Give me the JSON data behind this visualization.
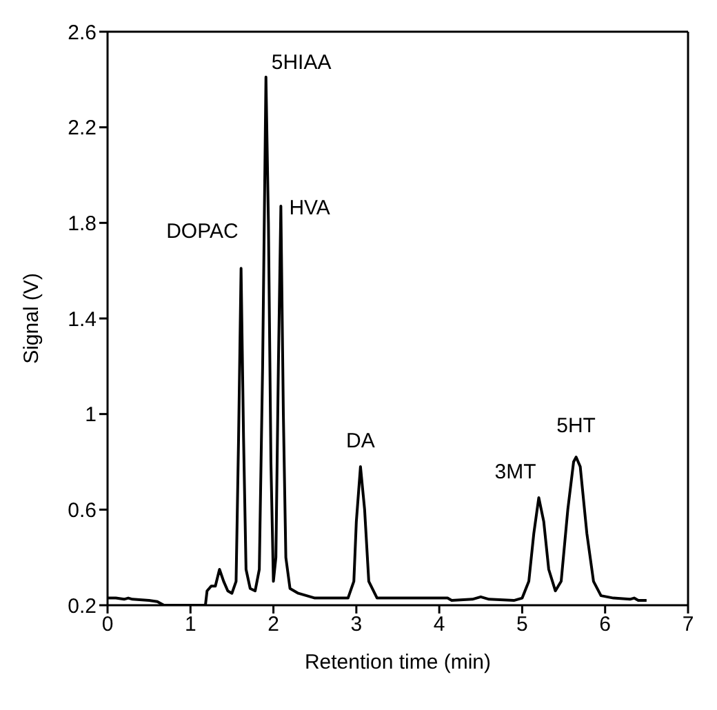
{
  "chart_data": {
    "type": "line",
    "xlabel": "Retention time (min)",
    "ylabel": "Signal (V)",
    "xlim": [
      0,
      7
    ],
    "xticks": [
      0,
      1,
      2,
      3,
      4,
      5,
      6,
      7
    ],
    "ylim": [
      0.2,
      2.6
    ],
    "yticks": [
      0.2,
      0.6,
      1,
      1.4,
      1.8,
      2.2,
      2.6
    ],
    "marker": "none",
    "line_style": "solid",
    "series": [
      {
        "color": "#000000",
        "x": [
          0,
          0.1,
          0.2,
          0.25,
          0.3,
          0.5,
          0.6,
          0.68,
          1.18,
          1.2,
          1.25,
          1.3,
          1.35,
          1.4,
          1.45,
          1.5,
          1.55,
          1.58,
          1.61,
          1.64,
          1.67,
          1.72,
          1.78,
          1.83,
          1.87,
          1.91,
          1.94,
          1.97,
          2.0,
          2.03,
          2.06,
          2.09,
          2.12,
          2.15,
          2.2,
          2.3,
          2.4,
          2.5,
          2.9,
          2.97,
          3.0,
          3.05,
          3.1,
          3.15,
          3.25,
          4.1,
          4.15,
          4.4,
          4.5,
          4.6,
          4.9,
          5.0,
          5.08,
          5.14,
          5.2,
          5.26,
          5.32,
          5.4,
          5.47,
          5.55,
          5.62,
          5.65,
          5.7,
          5.78,
          5.86,
          5.95,
          6.1,
          6.3,
          6.35,
          6.4,
          6.5
        ],
        "values": [
          0.23,
          0.23,
          0.225,
          0.23,
          0.225,
          0.22,
          0.215,
          0.2,
          0.2,
          0.26,
          0.28,
          0.28,
          0.35,
          0.3,
          0.26,
          0.25,
          0.3,
          0.9,
          1.61,
          0.9,
          0.35,
          0.27,
          0.26,
          0.35,
          1.2,
          2.41,
          1.8,
          0.8,
          0.3,
          0.4,
          1.2,
          1.87,
          1.0,
          0.4,
          0.27,
          0.25,
          0.24,
          0.23,
          0.23,
          0.3,
          0.55,
          0.78,
          0.6,
          0.3,
          0.23,
          0.23,
          0.22,
          0.225,
          0.235,
          0.225,
          0.22,
          0.23,
          0.3,
          0.5,
          0.65,
          0.55,
          0.35,
          0.26,
          0.3,
          0.6,
          0.8,
          0.82,
          0.78,
          0.5,
          0.3,
          0.24,
          0.23,
          0.225,
          0.23,
          0.22,
          0.22
        ]
      }
    ],
    "annotations": [
      {
        "text": "DOPAC",
        "x": 1.61,
        "y": 1.61
      },
      {
        "text": "5HIAA",
        "x": 1.91,
        "y": 2.41
      },
      {
        "text": "HVA",
        "x": 2.09,
        "y": 1.87
      },
      {
        "text": "DA",
        "x": 3.05,
        "y": 0.78
      },
      {
        "text": "3MT",
        "x": 5.2,
        "y": 0.65
      },
      {
        "text": "5HT",
        "x": 5.65,
        "y": 0.82
      }
    ]
  }
}
